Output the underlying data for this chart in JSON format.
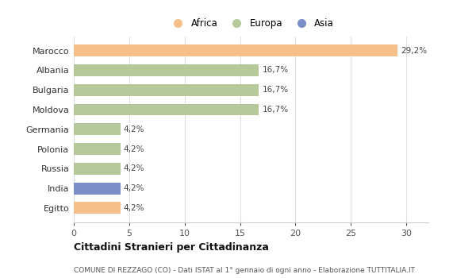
{
  "countries": [
    "Marocco",
    "Albania",
    "Bulgaria",
    "Moldova",
    "Germania",
    "Polonia",
    "Russia",
    "India",
    "Egitto"
  ],
  "values": [
    29.2,
    16.7,
    16.7,
    16.7,
    4.2,
    4.2,
    4.2,
    4.2,
    4.2
  ],
  "labels": [
    "29,2%",
    "16,7%",
    "16,7%",
    "16,7%",
    "4,2%",
    "4,2%",
    "4,2%",
    "4,2%",
    "4,2%"
  ],
  "colors": [
    "#f5c08a",
    "#b5c99a",
    "#b5c99a",
    "#b5c99a",
    "#b5c99a",
    "#b5c99a",
    "#b5c99a",
    "#7b8ec8",
    "#f5c08a"
  ],
  "legend_labels": [
    "Africa",
    "Europa",
    "Asia"
  ],
  "legend_colors": [
    "#f5c08a",
    "#b5c99a",
    "#7b8ec8"
  ],
  "xlim": [
    0,
    32
  ],
  "xticks": [
    0,
    5,
    10,
    15,
    20,
    25,
    30
  ],
  "title": "Cittadini Stranieri per Cittadinanza",
  "subtitle": "COMUNE DI REZZAGO (CO) - Dati ISTAT al 1° gennaio di ogni anno - Elaborazione TUTTITALIA.IT",
  "bg_color": "#ffffff",
  "bar_height": 0.6,
  "grid_color": "#e0e0e0"
}
